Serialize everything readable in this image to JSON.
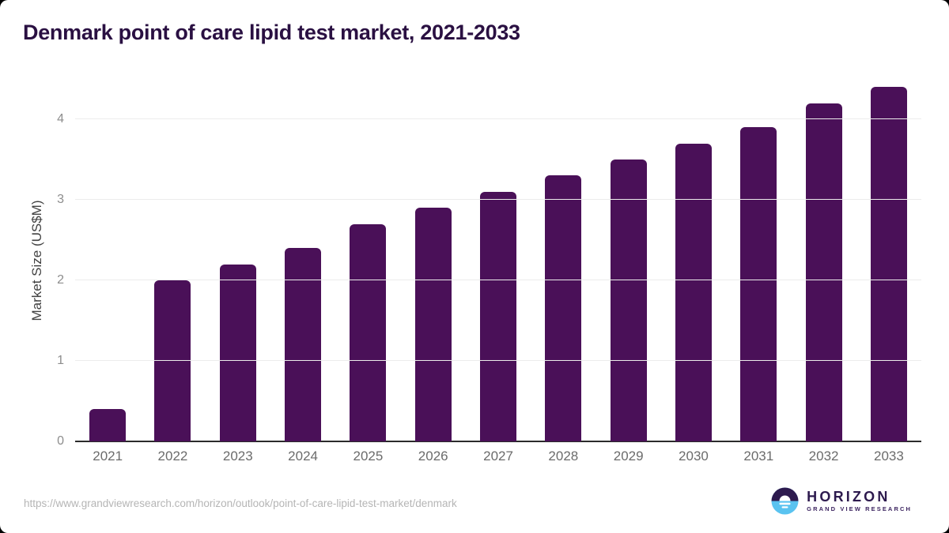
{
  "title": "Denmark point of care lipid test market, 2021-2033",
  "chart_data": {
    "type": "bar",
    "title": "Denmark point of care lipid test market, 2021-2033",
    "categories": [
      "2021",
      "2022",
      "2023",
      "2024",
      "2025",
      "2026",
      "2027",
      "2028",
      "2029",
      "2030",
      "2031",
      "2032",
      "2033"
    ],
    "values": [
      0.4,
      2.0,
      2.2,
      2.4,
      2.7,
      2.9,
      3.1,
      3.3,
      3.5,
      3.7,
      3.9,
      4.2,
      4.4
    ],
    "xlabel": "",
    "ylabel": "Market Size (US$M)",
    "ylim": [
      0,
      4.5
    ],
    "yticks": [
      0,
      1,
      2,
      3,
      4
    ],
    "grid": true,
    "legend": false
  },
  "colors": {
    "bar": "#4a1058",
    "title": "#2a1042",
    "gridline": "#ececec",
    "axis_line": "#2b2b2b",
    "tick_label": "#8d8d8d",
    "x_label": "#6b6b6b",
    "logo_purple": "#2d1a4e",
    "logo_blue": "#5ac3f0"
  },
  "footer": {
    "source_url": "https://www.grandviewresearch.com/horizon/outlook/point-of-care-lipid-test-market/denmark",
    "logo": {
      "brand": "HORIZON",
      "tagline": "GRAND VIEW RESEARCH"
    }
  }
}
